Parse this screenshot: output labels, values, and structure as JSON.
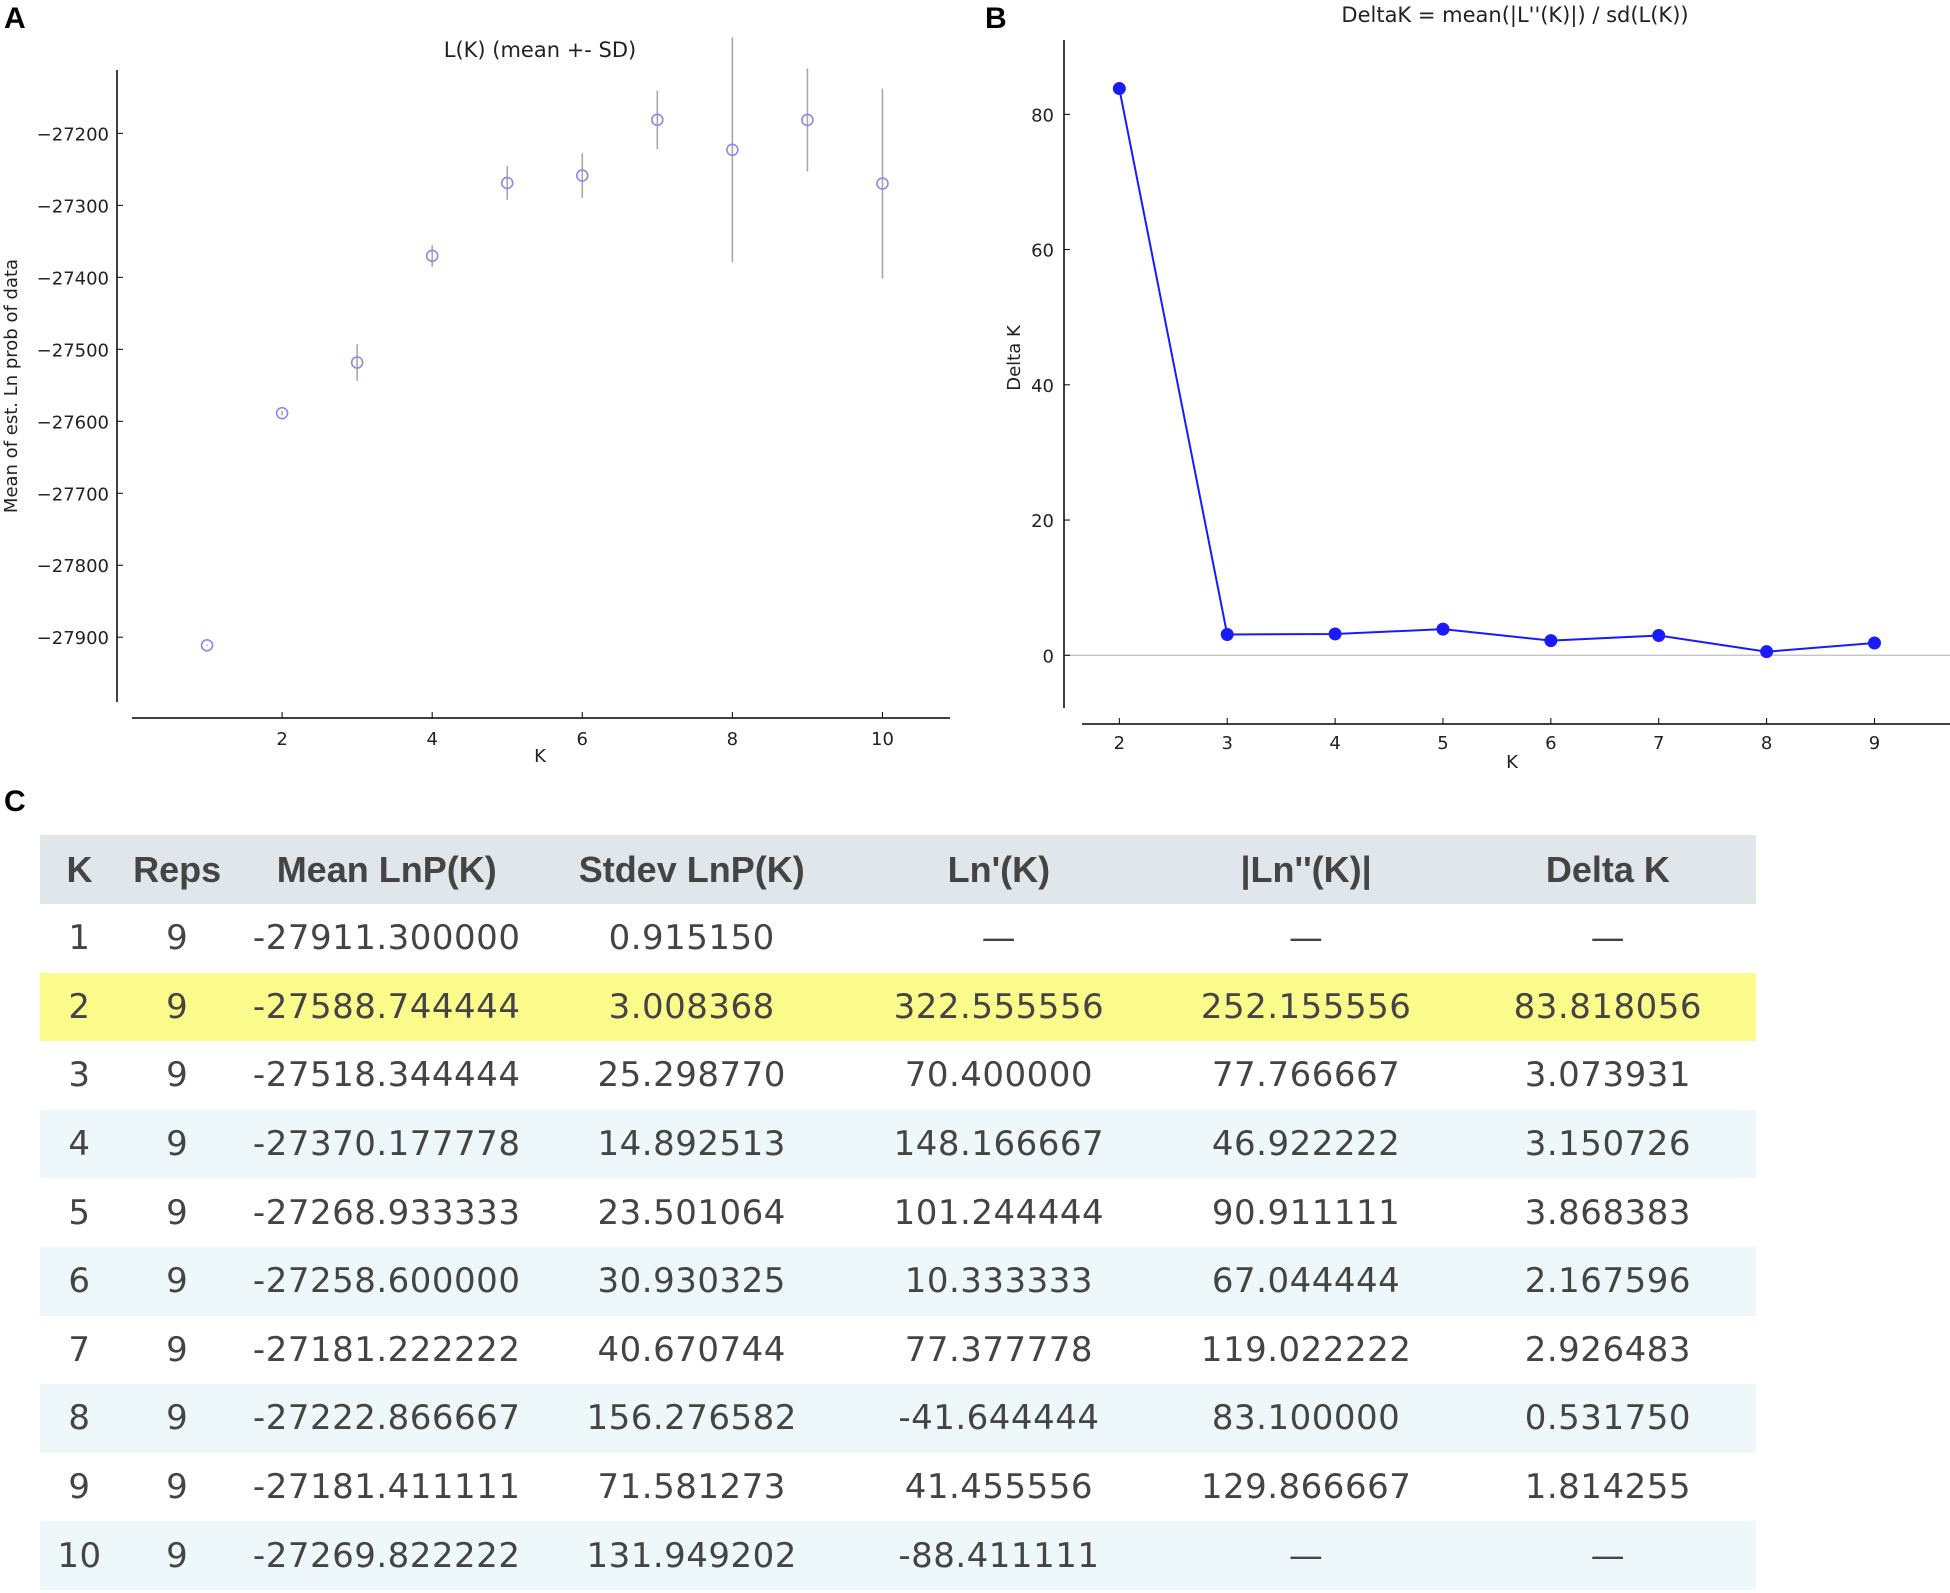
{
  "panels": {
    "a": "A",
    "b": "B",
    "c": "C"
  },
  "chart_data": [
    {
      "type": "scatter",
      "title": "L(K) (mean +- SD)",
      "xlabel": "K",
      "ylabel": "Mean of est. Ln prob of data",
      "x": [
        1,
        2,
        3,
        4,
        5,
        6,
        7,
        8,
        9,
        10
      ],
      "y": [
        -27911.3,
        -27588.744444,
        -27518.344444,
        -27370.177778,
        -27268.933333,
        -27258.6,
        -27181.222222,
        -27222.866667,
        -27181.411111,
        -27269.822222
      ],
      "yerr": [
        0.91515,
        3.008368,
        25.29877,
        14.892513,
        23.501064,
        30.930325,
        40.670744,
        156.276582,
        71.581273,
        131.949202
      ],
      "xticks": [
        2,
        4,
        6,
        8,
        10
      ],
      "xtick_labels": [
        "2",
        "4",
        "6",
        "8",
        "10"
      ],
      "yticks": [
        -27200,
        -27300,
        -27400,
        -27500,
        -27600,
        -27700,
        -27800,
        -27900
      ],
      "ytick_labels": [
        "−27200",
        "−27300",
        "−27400",
        "−27500",
        "−27600",
        "−27700",
        "−27800",
        "−27900"
      ],
      "xlim": [
        0,
        10.9
      ],
      "ylim": [
        -27990,
        -27112
      ],
      "marker": "open-circle",
      "point_color": "#8a8aee",
      "errorbar_color": "#a8a8a8"
    },
    {
      "type": "line",
      "title": "DeltaK = mean(|L''(K)|) / sd(L(K))",
      "xlabel": "K",
      "ylabel": "Delta K",
      "x": [
        2,
        3,
        4,
        5,
        6,
        7,
        8,
        9
      ],
      "y": [
        83.818056,
        3.073931,
        3.150726,
        3.868383,
        2.167596,
        2.926483,
        0.53175,
        1.814255
      ],
      "xticks": [
        2,
        3,
        4,
        5,
        6,
        7,
        8,
        9
      ],
      "xtick_labels": [
        "2",
        "3",
        "4",
        "5",
        "6",
        "7",
        "8",
        "9"
      ],
      "yticks": [
        0,
        20,
        40,
        60,
        80
      ],
      "ytick_labels": [
        "0",
        "20",
        "40",
        "60",
        "80"
      ],
      "xlim": [
        1.45,
        9.7
      ],
      "ylim": [
        -7.8,
        91
      ],
      "zero_line": true,
      "line_color": "#1a1aff",
      "zero_line_color": "#bbbbbb"
    }
  ],
  "table": {
    "headers": [
      "K",
      "Reps",
      "Mean LnP(K)",
      "Stdev LnP(K)",
      "Ln'(K)",
      "|Ln''(K)|",
      "Delta K"
    ],
    "rows": [
      [
        "1",
        "9",
        "-27911.300000",
        "0.915150",
        "—",
        "—",
        "—"
      ],
      [
        "2",
        "9",
        "-27588.744444",
        "3.008368",
        "322.555556",
        "252.155556",
        "83.818056"
      ],
      [
        "3",
        "9",
        "-27518.344444",
        "25.298770",
        "70.400000",
        "77.766667",
        "3.073931"
      ],
      [
        "4",
        "9",
        "-27370.177778",
        "14.892513",
        "148.166667",
        "46.922222",
        "3.150726"
      ],
      [
        "5",
        "9",
        "-27268.933333",
        "23.501064",
        "101.244444",
        "90.911111",
        "3.868383"
      ],
      [
        "6",
        "9",
        "-27258.600000",
        "30.930325",
        "10.333333",
        "67.044444",
        "2.167596"
      ],
      [
        "7",
        "9",
        "-27181.222222",
        "40.670744",
        "77.377778",
        "119.022222",
        "2.926483"
      ],
      [
        "8",
        "9",
        "-27222.866667",
        "156.276582",
        "-41.644444",
        "83.100000",
        "0.531750"
      ],
      [
        "9",
        "9",
        "-27181.411111",
        "71.581273",
        "41.455556",
        "129.866667",
        "1.814255"
      ],
      [
        "10",
        "9",
        "-27269.822222",
        "131.949202",
        "-88.411111",
        "—",
        "—"
      ]
    ],
    "highlight_row": 1,
    "highlight_color": "#fbfb8c"
  }
}
